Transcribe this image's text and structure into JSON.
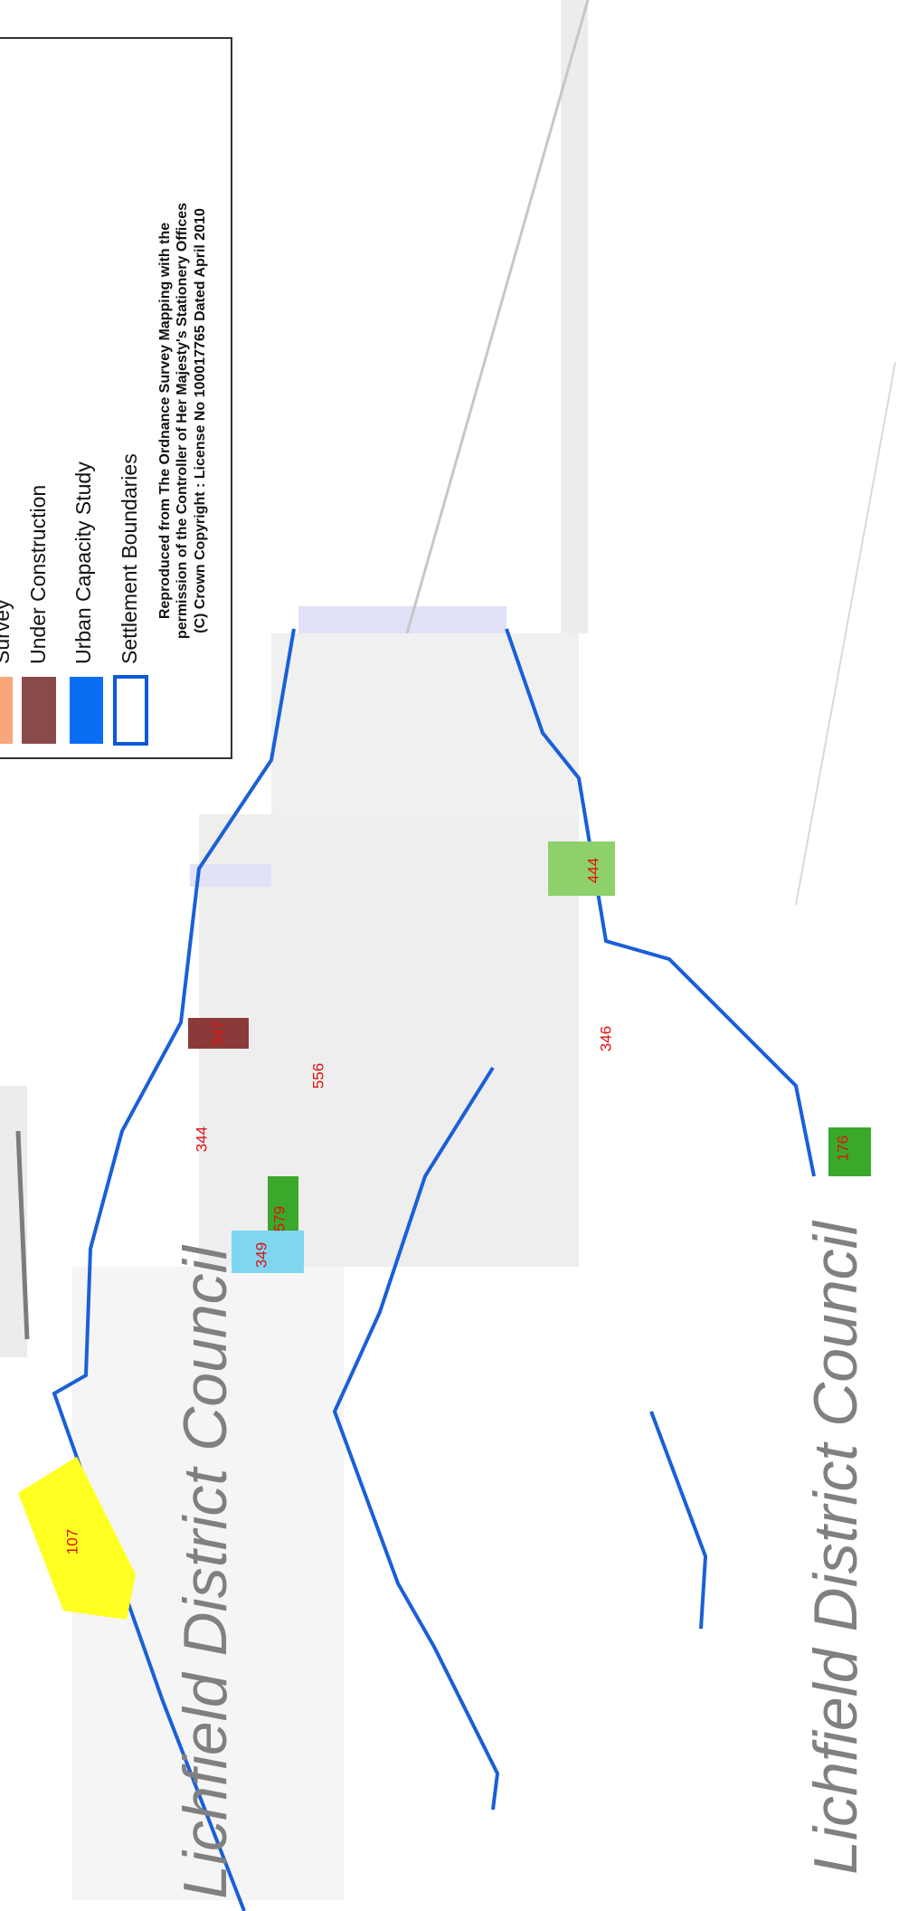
{
  "legend": {
    "items": [
      "Survey",
      "Under Construction",
      "Urban Capacity Study",
      "Settlement Boundaries"
    ],
    "copyright": [
      "Reproduced from The Ordnance Survey Mapping with the",
      "permission of the Controller of Her Majesty's Stationery Offices",
      "(C) Crown Copyright : License No 100017765 Dated April 2010"
    ]
  },
  "sites": [
    "107",
    "344",
    "347",
    "556",
    "579",
    "349",
    "444",
    "346",
    "176"
  ],
  "council_labels": [
    "Lichfield District Council",
    "Lichfield District Council"
  ]
}
